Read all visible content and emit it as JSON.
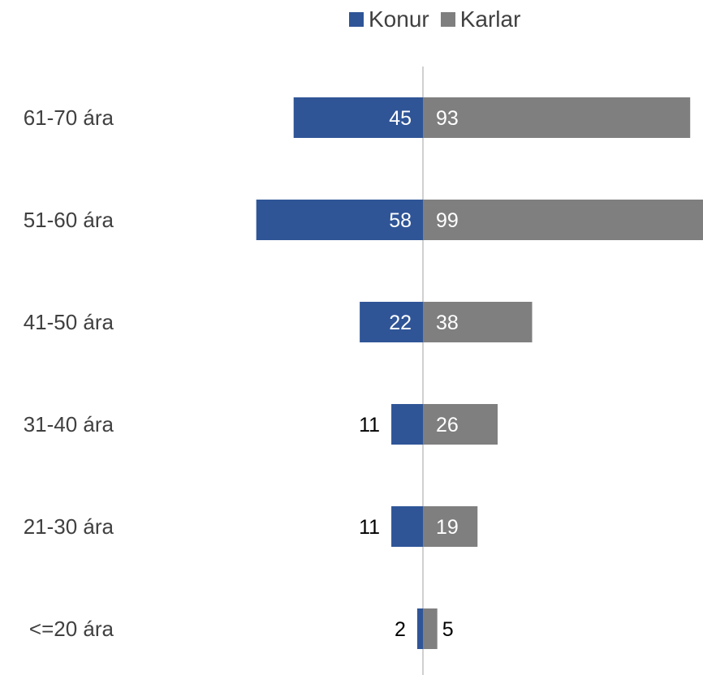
{
  "chart_data": {
    "type": "bar",
    "orientation": "horizontal-diverging",
    "title": "",
    "categories": [
      "61-70 ára",
      "51-60 ára",
      "41-50 ára",
      "31-40 ára",
      "21-30 ára",
      "<=20 ára"
    ],
    "series": [
      {
        "name": "Konur",
        "values": [
          45,
          58,
          22,
          11,
          11,
          2
        ],
        "color": "#2F5597",
        "side": "left"
      },
      {
        "name": "Karlar",
        "values": [
          93,
          99,
          38,
          26,
          19,
          5
        ],
        "color": "#7F7F7F",
        "side": "right"
      }
    ],
    "legend_position": "top",
    "grid": false,
    "data_labels": true,
    "label_colors": {
      "inside": "#FFFFFF",
      "outside": "#000000",
      "category": "#404040",
      "axis_line": "#D0D0D0"
    }
  }
}
